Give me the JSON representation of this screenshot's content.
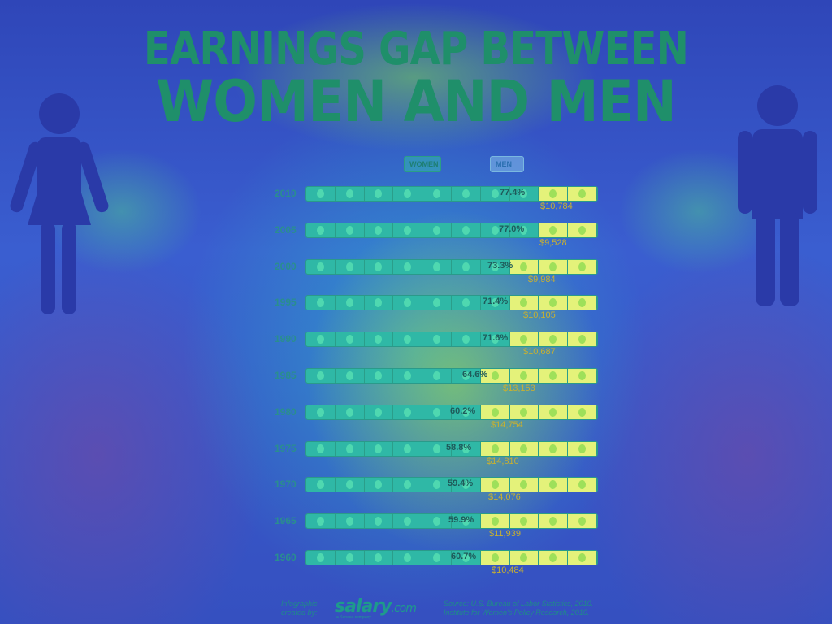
{
  "title_line1": "EARNINGS GAP BETWEEN",
  "title_line2": "WOMEN AND MEN",
  "legend": {
    "women": "WOMEN",
    "men": "MEN"
  },
  "colors": {
    "women_bar": "#2fb8a6",
    "men_bar": "#e4f27a",
    "coin_women": "#4fd8b0",
    "coin_men": "#9ee05a"
  },
  "chart_data": {
    "type": "bar",
    "title": "EARNINGS GAP BETWEEN WOMEN AND MEN",
    "xlabel": "",
    "ylabel": "",
    "series": [
      {
        "name": "WOMEN",
        "values": [
          77.4,
          77.0,
          73.3,
          71.4,
          71.6,
          64.6,
          60.2,
          58.8,
          59.4,
          59.9,
          60.7
        ]
      },
      {
        "name": "MEN",
        "values": [
          100,
          100,
          100,
          100,
          100,
          100,
          100,
          100,
          100,
          100,
          100
        ]
      }
    ],
    "categories": [
      "2010",
      "2005",
      "2000",
      "1995",
      "1990",
      "1985",
      "1980",
      "1975",
      "1970",
      "1965",
      "1960"
    ],
    "percent_labels": [
      "77.4%",
      "77.0%",
      "73.3%",
      "71.4%",
      "71.6%",
      "64.6%",
      "60.2%",
      "58.8%",
      "59.4%",
      "59.9%",
      "60.7%"
    ],
    "gap_labels": [
      "$10,784",
      "$9,528",
      "$9,984",
      "$10,105",
      "$10,687",
      "$13,153",
      "$14,754",
      "$14,810",
      "$14,076",
      "$11,939",
      "$10,484"
    ],
    "segments_per_bar": 10,
    "xlim": [
      0,
      100
    ]
  },
  "footer": {
    "credit": "Infographic created by:",
    "logo_main": "salary",
    "logo_suffix": ".com",
    "logo_tag": "a Kenexa company",
    "source_line1": "Source: U.S. Bureau of Labor Statistics, 2010.",
    "source_line2": "Institute for Women's Policy Research, 2010."
  }
}
